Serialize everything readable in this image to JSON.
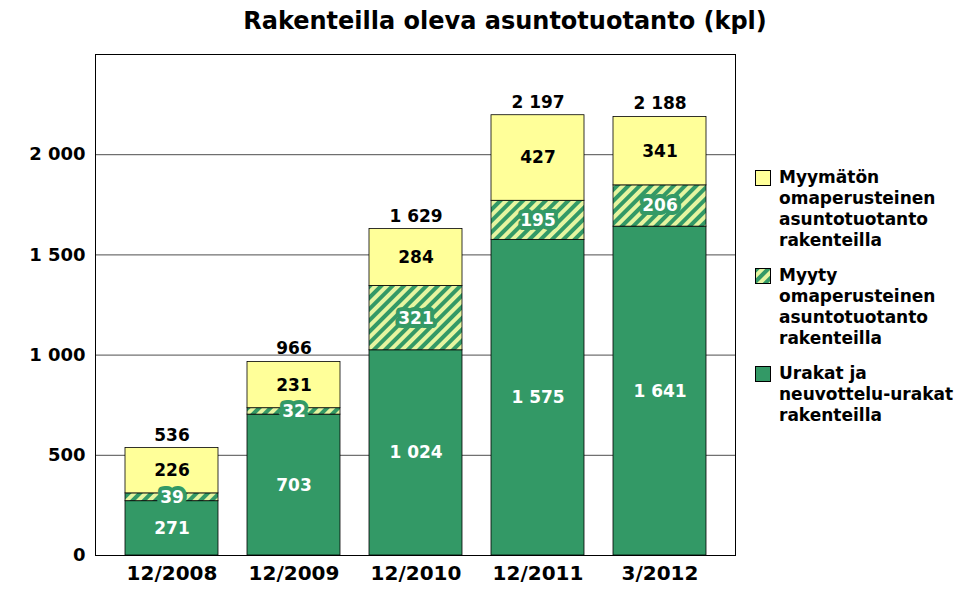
{
  "chart_data": {
    "type": "bar",
    "title": "Rakenteilla oleva asuntotuotanto (kpl)",
    "categories": [
      "12/2008",
      "12/2009",
      "12/2010",
      "12/2011",
      "3/2012"
    ],
    "stacked": true,
    "data_labels": true,
    "grid": true,
    "legend": "right",
    "ylim": [
      0,
      2500
    ],
    "yticks": [
      0,
      500,
      {
        "value": 1000,
        "label": "1 000"
      },
      {
        "value": 1500,
        "label": "1 500"
      },
      {
        "value": 2000,
        "label": "2 000"
      }
    ],
    "series": [
      {
        "name": "Urakat ja neuvottelu-urakat rakenteilla",
        "color": "#339966",
        "values": [
          271,
          703,
          1024,
          1575,
          1641
        ],
        "value_labels": [
          "271",
          "703",
          "1 024",
          "1 575",
          "1 641"
        ]
      },
      {
        "name": "Myyty omaperusteinen asuntotuotanto rakenteilla",
        "color": "#339966",
        "marker": "hatch",
        "values": [
          39,
          32,
          321,
          195,
          206
        ]
      },
      {
        "name": "Myymätön omaperusteinen asuntotuotanto rakenteilla",
        "color": "#ffff99",
        "values": [
          226,
          231,
          284,
          427,
          341
        ]
      }
    ],
    "totals": [
      536,
      966,
      1629,
      2197,
      2188
    ],
    "total_labels": [
      "536",
      "966",
      "1 629",
      "2 197",
      "2 188"
    ]
  }
}
